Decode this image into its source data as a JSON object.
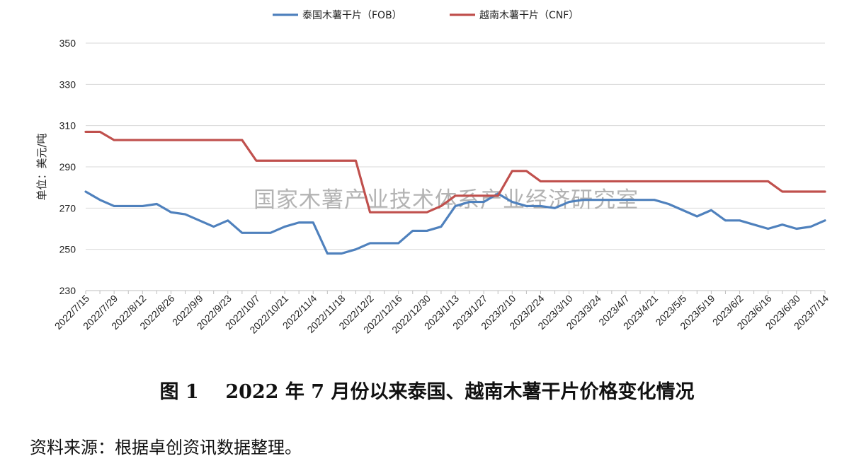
{
  "chart_data": {
    "type": "line",
    "ylabel": "单位：美元/吨",
    "ylim": [
      230,
      350
    ],
    "yticks": [
      230,
      250,
      270,
      290,
      310,
      330,
      350
    ],
    "grid": true,
    "legend_position": "top-center",
    "x": [
      "2022/7/15",
      "2022/7/22",
      "2022/7/29",
      "2022/8/5",
      "2022/8/12",
      "2022/8/19",
      "2022/8/26",
      "2022/9/2",
      "2022/9/9",
      "2022/9/16",
      "2022/9/23",
      "2022/9/30",
      "2022/10/7",
      "2022/10/14",
      "2022/10/21",
      "2022/10/28",
      "2022/11/4",
      "2022/11/11",
      "2022/11/18",
      "2022/11/25",
      "2022/12/2",
      "2022/12/9",
      "2022/12/16",
      "2022/12/23",
      "2022/12/30",
      "2023/1/6",
      "2023/1/13",
      "2023/1/20",
      "2023/1/27",
      "2023/2/3",
      "2023/2/10",
      "2023/2/17",
      "2023/2/24",
      "2023/3/3",
      "2023/3/10",
      "2023/3/17",
      "2023/3/24",
      "2023/3/31",
      "2023/4/7",
      "2023/4/14",
      "2023/4/21",
      "2023/4/28",
      "2023/5/5",
      "2023/5/12",
      "2023/5/19",
      "2023/5/26",
      "2023/6/2",
      "2023/6/9",
      "2023/6/16",
      "2023/6/23",
      "2023/6/30",
      "2023/7/7",
      "2023/7/14"
    ],
    "x_tick_labels": [
      "2022/7/15",
      "2022/7/29",
      "2022/8/12",
      "2022/8/26",
      "2022/9/9",
      "2022/9/23",
      "2022/10/7",
      "2022/10/21",
      "2022/11/4",
      "2022/11/18",
      "2022/12/2",
      "2022/12/16",
      "2022/12/30",
      "2023/1/13",
      "2023/1/27",
      "2023/2/10",
      "2023/2/24",
      "2023/3/10",
      "2023/3/24",
      "2023/4/7",
      "2023/4/21",
      "2023/5/5",
      "2023/5/19",
      "2023/6/2",
      "2023/6/16",
      "2023/6/30",
      "2023/7/14"
    ],
    "series": [
      {
        "name": "泰国木薯干片（FOB）",
        "color": "#4f81bd",
        "values": [
          278,
          274,
          271,
          271,
          271,
          272,
          268,
          267,
          264,
          261,
          264,
          258,
          258,
          258,
          261,
          263,
          263,
          248,
          248,
          250,
          253,
          253,
          253,
          259,
          259,
          261,
          271,
          273,
          273,
          277,
          273,
          271,
          271,
          270,
          273,
          274,
          274,
          274,
          274,
          274,
          274,
          272,
          269,
          266,
          269,
          264,
          264,
          262,
          260,
          262,
          260,
          261,
          264
        ]
      },
      {
        "name": "越南木薯干片（CNF）",
        "color": "#c0504d",
        "values": [
          307,
          307,
          303,
          303,
          303,
          303,
          303,
          303,
          303,
          303,
          303,
          303,
          293,
          293,
          293,
          293,
          293,
          293,
          293,
          293,
          268,
          268,
          268,
          268,
          268,
          271,
          276,
          276,
          276,
          276,
          288,
          288,
          283,
          283,
          283,
          283,
          283,
          283,
          283,
          283,
          283,
          283,
          283,
          283,
          283,
          283,
          283,
          283,
          283,
          278,
          278,
          278,
          278
        ]
      }
    ]
  },
  "watermark": "国家木薯产业技术体系产业经济研究室",
  "caption": "图 1    2022 年 7 月份以来泰国、越南木薯干片价格变化情况",
  "source": "资料来源：根据卓创资讯数据整理。"
}
